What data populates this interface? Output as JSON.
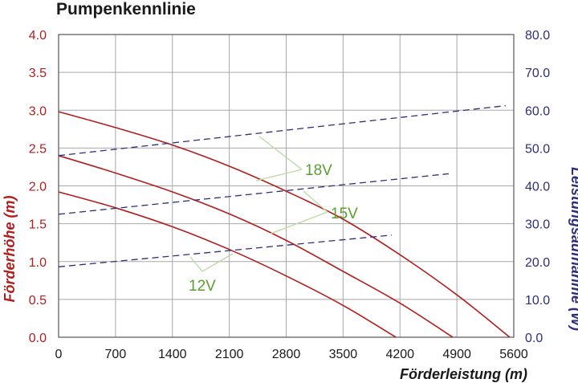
{
  "chart_data": {
    "type": "line",
    "title": "Pumpenkennlinie",
    "xlabel": "Förderleistung (m)",
    "ylabel_left": "Förderhöhe (m)",
    "ylabel_right": "Leistungsaufnahme (W)",
    "xlim": [
      0,
      5600
    ],
    "ylim_left": [
      0,
      4.0
    ],
    "ylim_right": [
      0,
      80.0
    ],
    "x_ticks": [
      "0",
      "700",
      "1400",
      "2100",
      "2800",
      "3500",
      "4200",
      "4900",
      "5600"
    ],
    "y_ticks_left": [
      "0.0",
      "0.5",
      "1.0",
      "1.5",
      "2.0",
      "2.5",
      "3.0",
      "3.5",
      "4.0"
    ],
    "y_ticks_right": [
      "0.0",
      "10.0",
      "20.0",
      "30.0",
      "40.0",
      "50.0",
      "60.0",
      "70.0",
      "80.0"
    ],
    "grid": true,
    "colors": {
      "head": "#b21e1e",
      "power": "#2e2e7a",
      "annotation": "#5a9e2f",
      "grid": "#a8a8a8"
    },
    "series": [
      {
        "name": "18V",
        "kind": "head",
        "axis": "left",
        "x": [
          0,
          700,
          1400,
          2100,
          2800,
          3500,
          4200,
          4900,
          5550
        ],
        "y": [
          2.98,
          2.77,
          2.54,
          2.26,
          1.93,
          1.56,
          1.09,
          0.56,
          0.0
        ]
      },
      {
        "name": "15V",
        "kind": "head",
        "axis": "left",
        "x": [
          0,
          700,
          1400,
          2100,
          2800,
          3500,
          4200,
          4850
        ],
        "y": [
          2.4,
          2.17,
          1.92,
          1.63,
          1.28,
          0.87,
          0.45,
          0.0
        ]
      },
      {
        "name": "12V",
        "kind": "head",
        "axis": "left",
        "x": [
          0,
          700,
          1400,
          2100,
          2800,
          3500,
          4150
        ],
        "y": [
          1.92,
          1.71,
          1.46,
          1.16,
          0.81,
          0.42,
          0.0
        ]
      },
      {
        "name": "18V",
        "kind": "power",
        "axis": "right",
        "x": [
          0,
          5500
        ],
        "y": [
          48.0,
          61.2
        ]
      },
      {
        "name": "15V",
        "kind": "power",
        "axis": "right",
        "x": [
          0,
          4800
        ],
        "y": [
          32.5,
          43.2
        ]
      },
      {
        "name": "12V",
        "kind": "power",
        "axis": "right",
        "x": [
          0,
          4100
        ],
        "y": [
          18.6,
          27.0
        ]
      }
    ],
    "annotations": [
      "18V",
      "15V",
      "12V"
    ]
  }
}
